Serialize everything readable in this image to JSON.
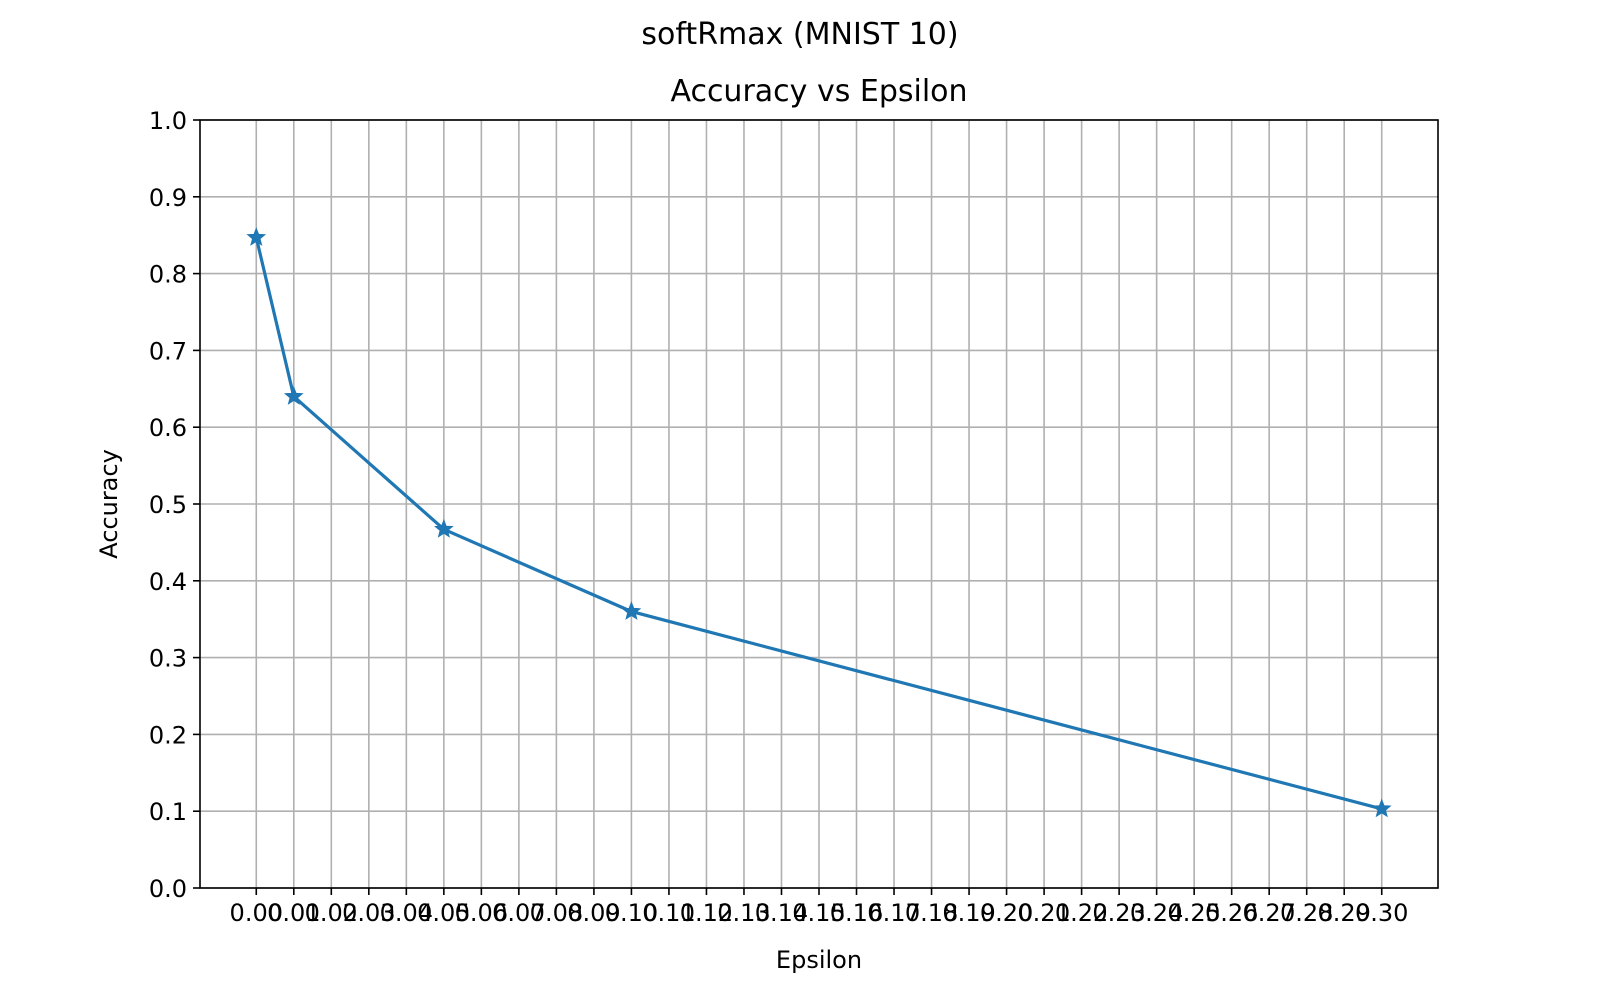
{
  "suptitle": "softRmax (MNIST 10)",
  "chart_data": {
    "type": "line",
    "title": "Accuracy vs Epsilon",
    "xlabel": "Epsilon",
    "ylabel": "Accuracy",
    "xlim": [
      -0.015,
      0.315
    ],
    "ylim": [
      0.0,
      1.0
    ],
    "grid": true,
    "legend": "none",
    "x_ticks": [
      "0.00",
      "0.01",
      "0.02",
      "0.03",
      "0.04",
      "0.05",
      "0.06",
      "0.07",
      "0.08",
      "0.09",
      "0.10",
      "0.11",
      "0.12",
      "0.13",
      "0.14",
      "0.15",
      "0.16",
      "0.17",
      "0.18",
      "0.19",
      "0.20",
      "0.21",
      "0.22",
      "0.23",
      "0.24",
      "0.25",
      "0.26",
      "0.27",
      "0.28",
      "0.29",
      "0.30"
    ],
    "y_ticks": [
      "0.0",
      "0.1",
      "0.2",
      "0.3",
      "0.4",
      "0.5",
      "0.6",
      "0.7",
      "0.8",
      "0.9",
      "1.0"
    ],
    "series": [
      {
        "color": "#1f77b4",
        "marker": "star",
        "x": [
          0.0,
          0.01,
          0.05,
          0.1,
          0.3
        ],
        "y": [
          0.847,
          0.64,
          0.467,
          0.36,
          0.103
        ]
      }
    ]
  }
}
